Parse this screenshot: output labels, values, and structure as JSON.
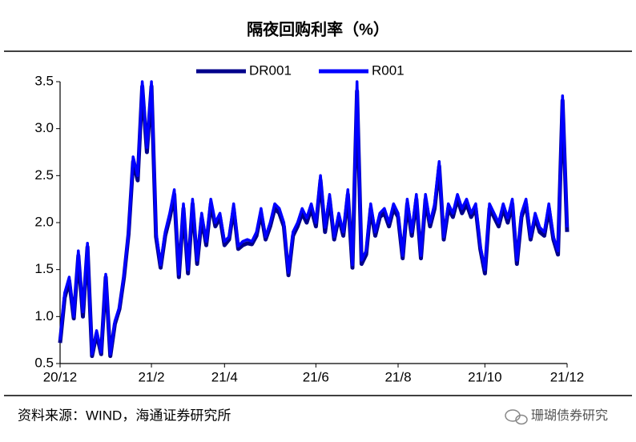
{
  "chart_data": {
    "type": "line",
    "title": "隔夜回购利率（%）",
    "source": "资料来源：WIND，海通证券研究所",
    "watermark": "珊瑚债券研究",
    "categories": [
      "20/12",
      null,
      null,
      null,
      null,
      null,
      null,
      null,
      null,
      null,
      null,
      null,
      null,
      null,
      null,
      null,
      null,
      null,
      null,
      null,
      "21/2",
      null,
      null,
      null,
      null,
      null,
      null,
      null,
      null,
      null,
      null,
      null,
      null,
      null,
      null,
      null,
      "21/4",
      null,
      null,
      null,
      null,
      null,
      null,
      null,
      null,
      null,
      null,
      null,
      null,
      null,
      null,
      null,
      null,
      null,
      null,
      null,
      "21/6",
      null,
      null,
      null,
      null,
      null,
      null,
      null,
      null,
      null,
      null,
      null,
      null,
      null,
      null,
      null,
      null,
      null,
      "21/8",
      null,
      null,
      null,
      null,
      null,
      null,
      null,
      null,
      null,
      null,
      null,
      null,
      null,
      null,
      null,
      null,
      null,
      null,
      "21/10",
      null,
      null,
      null,
      null,
      null,
      null,
      null,
      null,
      null,
      null,
      null,
      null,
      null,
      null,
      null,
      null,
      null,
      "21/12"
    ],
    "series": [
      {
        "name": "DR001",
        "color": "#00008b",
        "values": [
          0.72,
          1.2,
          1.38,
          0.98,
          1.65,
          1.0,
          1.74,
          0.58,
          0.82,
          0.6,
          1.42,
          0.58,
          0.92,
          1.08,
          1.42,
          1.88,
          2.65,
          2.45,
          3.45,
          2.75,
          3.45,
          1.85,
          1.52,
          1.86,
          2.05,
          2.3,
          1.42,
          2.15,
          1.46,
          2.2,
          1.56,
          2.05,
          1.76,
          2.2,
          1.96,
          2.06,
          1.76,
          1.82,
          2.15,
          1.72,
          1.76,
          1.78,
          1.77,
          1.86,
          2.1,
          1.82,
          1.96,
          2.15,
          2.1,
          1.96,
          1.44,
          1.86,
          1.96,
          2.1,
          2.0,
          2.15,
          1.96,
          2.45,
          1.9,
          2.25,
          1.82,
          2.06,
          1.86,
          2.3,
          1.52,
          3.4,
          1.56,
          1.66,
          2.15,
          1.86,
          2.06,
          2.1,
          1.96,
          2.15,
          2.06,
          1.62,
          2.2,
          1.86,
          2.25,
          1.62,
          2.25,
          1.96,
          2.15,
          2.6,
          1.82,
          2.15,
          2.06,
          2.25,
          2.1,
          2.2,
          2.06,
          2.15,
          1.72,
          1.46,
          2.15,
          2.06,
          1.96,
          2.15,
          2.0,
          2.2,
          1.56,
          2.06,
          2.2,
          1.82,
          2.06,
          1.9,
          1.86,
          2.15,
          1.82,
          1.66,
          3.3,
          1.9
        ]
      },
      {
        "name": "R001",
        "color": "#0000ff",
        "values": [
          0.75,
          1.25,
          1.42,
          1.0,
          1.7,
          1.05,
          1.78,
          0.6,
          0.85,
          0.62,
          1.45,
          0.6,
          0.95,
          1.1,
          1.45,
          1.9,
          2.7,
          2.5,
          3.5,
          2.8,
          3.5,
          1.9,
          1.55,
          1.9,
          2.1,
          2.35,
          1.45,
          2.2,
          1.5,
          2.25,
          1.6,
          2.1,
          1.8,
          2.25,
          2.0,
          2.1,
          1.8,
          1.85,
          2.2,
          1.75,
          1.8,
          1.82,
          1.8,
          1.9,
          2.15,
          1.85,
          2.0,
          2.2,
          2.15,
          2.0,
          1.47,
          1.9,
          2.0,
          2.15,
          2.05,
          2.2,
          2.0,
          2.5,
          1.95,
          2.3,
          1.85,
          2.1,
          1.9,
          2.35,
          1.55,
          3.5,
          1.6,
          1.7,
          2.2,
          1.9,
          2.1,
          2.15,
          2.0,
          2.2,
          2.1,
          1.65,
          2.25,
          1.9,
          2.3,
          1.65,
          2.3,
          2.0,
          2.2,
          2.65,
          1.85,
          2.2,
          2.1,
          2.3,
          2.15,
          2.25,
          2.1,
          2.2,
          1.75,
          1.5,
          2.2,
          2.1,
          2.0,
          2.2,
          2.05,
          2.25,
          1.6,
          2.1,
          2.25,
          1.85,
          2.1,
          1.95,
          1.9,
          2.2,
          1.85,
          1.7,
          3.35,
          1.95
        ]
      }
    ],
    "ylim": [
      0.5,
      3.5
    ],
    "yticks": [
      0.5,
      {
        "value": 1,
        "label": "1.0"
      },
      1.5,
      {
        "value": 2,
        "label": "2.0"
      },
      2.5,
      {
        "value": 3,
        "label": "3.0"
      },
      3.5
    ],
    "legend": "top"
  }
}
